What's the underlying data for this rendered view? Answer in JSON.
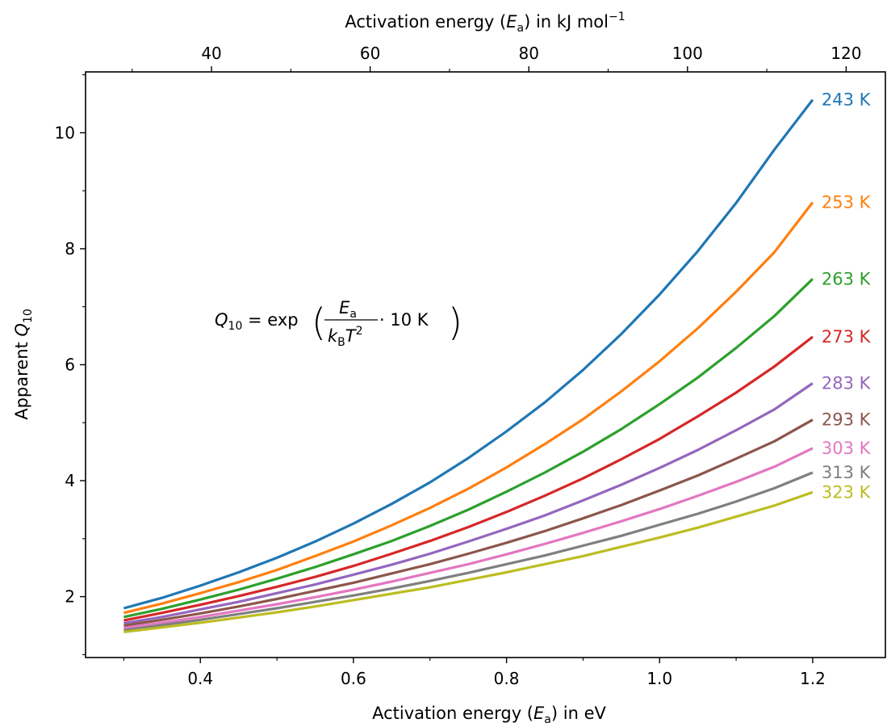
{
  "chart_data": {
    "type": "line",
    "xlabel": {
      "pre": "Activation energy (",
      "var": "E",
      "sub": "a",
      "post": ") in eV"
    },
    "top_xlabel": {
      "pre": "Activation energy (",
      "var": "E",
      "sub": "a",
      "post": ") in kJ mol",
      "sup": "−1"
    },
    "ylabel": {
      "pre": "Apparent ",
      "var": "Q",
      "sub": "10"
    },
    "xlim": [
      0.25,
      1.295
    ],
    "ylim": [
      0.95,
      11.05
    ],
    "x_ticks": [
      0.4,
      0.6,
      0.8,
      1.0,
      1.2
    ],
    "x_tick_labels": [
      "0.4",
      "0.6",
      "0.8",
      "1.0",
      "1.2"
    ],
    "x_minor_ticks": [
      0.3,
      0.5,
      0.7,
      0.9,
      1.1
    ],
    "y_ticks": [
      2,
      4,
      6,
      8,
      10
    ],
    "y_tick_labels": [
      "2",
      "4",
      "6",
      "8",
      "10"
    ],
    "y_minor_ticks": [
      1,
      3,
      5,
      7,
      9,
      11
    ],
    "top_ticks_kj": [
      40,
      60,
      80,
      100,
      120
    ],
    "top_tick_labels": [
      "40",
      "60",
      "80",
      "100",
      "120"
    ],
    "top_minor_ticks_kj": [
      30,
      50,
      70,
      90,
      110
    ],
    "ev_to_kj_per_mol": 96.485,
    "grid": false,
    "legend": "labels at right end of each line",
    "annotation": {
      "q": "Q",
      "q_sub": "10",
      "eq": " = exp",
      "num": "E",
      "num_sub": "a",
      "den_k": "k",
      "den_k_sub": "B",
      "den_t": "T",
      "den_t_sup": "2",
      "factor": " · 10 K"
    },
    "x": [
      0.3,
      0.35,
      0.4,
      0.45,
      0.5,
      0.55,
      0.6,
      0.65,
      0.7,
      0.75,
      0.8,
      0.85,
      0.9,
      0.95,
      1.0,
      1.05,
      1.1,
      1.15,
      1.2
    ],
    "series": [
      {
        "name": "243 K",
        "color": "#1f77b4",
        "values": [
          1.8,
          1.98,
          2.19,
          2.42,
          2.67,
          2.95,
          3.26,
          3.6,
          3.97,
          4.39,
          4.85,
          5.35,
          5.91,
          6.53,
          7.21,
          7.96,
          8.79,
          9.71,
          10.57
        ]
      },
      {
        "name": "253 K",
        "color": "#ff7f0e",
        "values": [
          1.72,
          1.88,
          2.06,
          2.25,
          2.46,
          2.7,
          2.95,
          3.23,
          3.53,
          3.86,
          4.23,
          4.63,
          5.06,
          5.54,
          6.06,
          6.63,
          7.26,
          7.94,
          8.8
        ]
      },
      {
        "name": "263 K",
        "color": "#2ca02c",
        "values": [
          1.65,
          1.79,
          1.95,
          2.12,
          2.31,
          2.51,
          2.73,
          2.96,
          3.22,
          3.5,
          3.81,
          4.14,
          4.5,
          4.89,
          5.32,
          5.78,
          6.29,
          6.84,
          7.48
        ]
      },
      {
        "name": "273 K",
        "color": "#d62728",
        "values": [
          1.59,
          1.72,
          1.86,
          2.01,
          2.17,
          2.34,
          2.53,
          2.74,
          2.96,
          3.2,
          3.46,
          3.74,
          4.04,
          4.37,
          4.72,
          5.11,
          5.52,
          5.97,
          6.48
        ]
      },
      {
        "name": "283 K",
        "color": "#9467bd",
        "values": [
          1.54,
          1.65,
          1.78,
          1.91,
          2.06,
          2.21,
          2.38,
          2.55,
          2.74,
          2.95,
          3.17,
          3.4,
          3.66,
          3.93,
          4.22,
          4.53,
          4.87,
          5.23,
          5.68
        ]
      },
      {
        "name": "293 K",
        "color": "#8c564b",
        "values": [
          1.5,
          1.6,
          1.71,
          1.83,
          1.96,
          2.1,
          2.24,
          2.4,
          2.56,
          2.74,
          2.93,
          3.13,
          3.35,
          3.58,
          3.83,
          4.09,
          4.38,
          4.68,
          5.05
        ]
      },
      {
        "name": "303 K",
        "color": "#e377c2",
        "values": [
          1.46,
          1.55,
          1.65,
          1.76,
          1.87,
          1.99,
          2.12,
          2.26,
          2.41,
          2.56,
          2.73,
          2.91,
          3.1,
          3.3,
          3.51,
          3.74,
          3.98,
          4.24,
          4.56
        ]
      },
      {
        "name": "313 K",
        "color": "#7f7f7f",
        "values": [
          1.42,
          1.51,
          1.6,
          1.7,
          1.8,
          1.91,
          2.02,
          2.14,
          2.27,
          2.41,
          2.56,
          2.71,
          2.88,
          3.05,
          3.24,
          3.43,
          3.64,
          3.87,
          4.14
        ]
      },
      {
        "name": "323 K",
        "color": "#bcbd22",
        "values": [
          1.39,
          1.47,
          1.55,
          1.64,
          1.73,
          1.83,
          1.94,
          2.05,
          2.16,
          2.29,
          2.42,
          2.56,
          2.7,
          2.86,
          3.02,
          3.19,
          3.38,
          3.57,
          3.8
        ]
      }
    ]
  }
}
